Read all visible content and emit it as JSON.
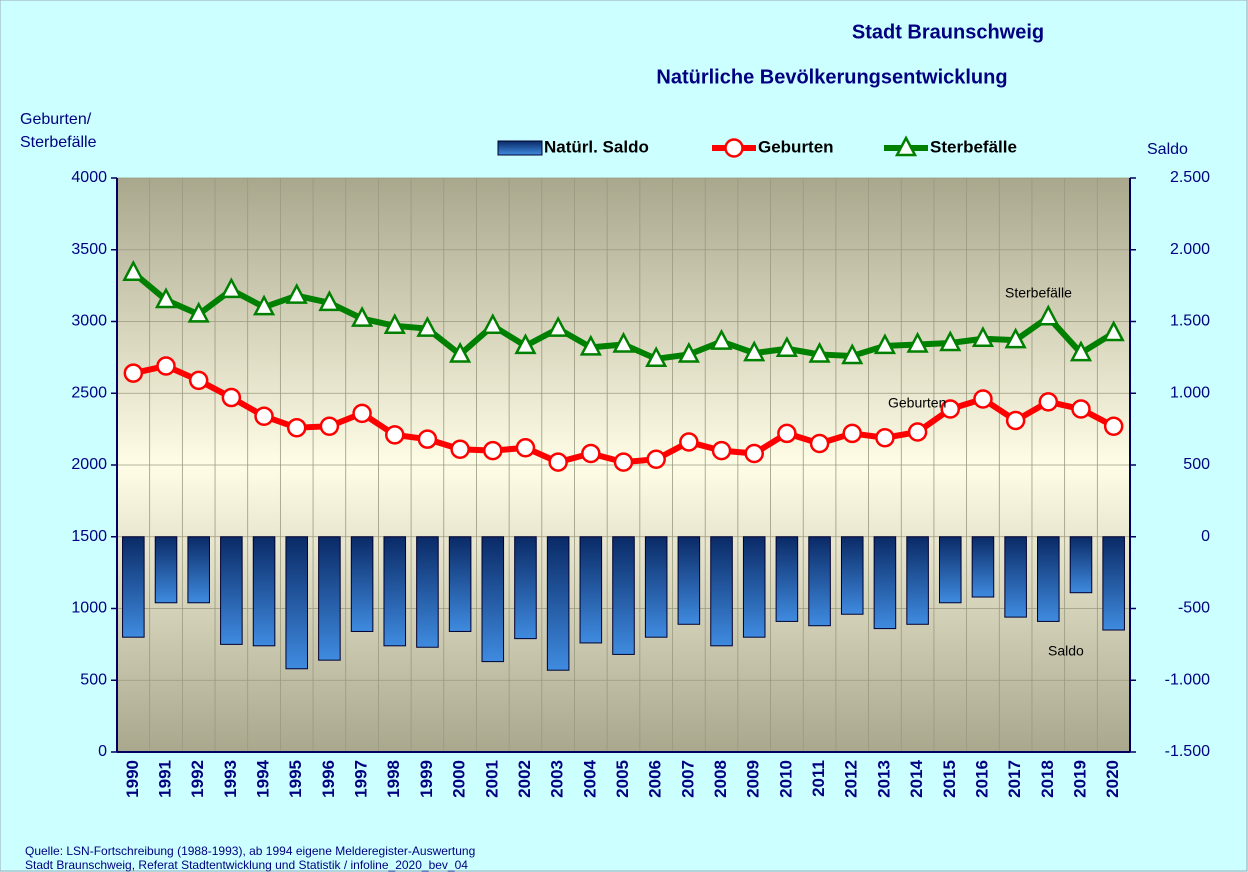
{
  "chart_data": {
    "type": "combo",
    "title": "Stadt Braunschweig",
    "subtitle": "Natürliche Bevölkerungsentwicklung",
    "y_label": [
      "Geburten/",
      "Sterbefälle"
    ],
    "y2_label": "Saldo",
    "categories": [
      "1990",
      "1991",
      "1992",
      "1993",
      "1994",
      "1995",
      "1996",
      "1997",
      "1998",
      "1999",
      "2000",
      "2001",
      "2002",
      "2003",
      "2004",
      "2005",
      "2006",
      "2007",
      "2008",
      "2009",
      "2010",
      "2011",
      "2012",
      "2013",
      "2014",
      "2015",
      "2016",
      "2017",
      "2018",
      "2019",
      "2020"
    ],
    "series": [
      {
        "name": "Natürl. Saldo",
        "type": "bar",
        "axis": "y2",
        "color": "#1a5cb0",
        "values": [
          -700,
          -460,
          -460,
          -750,
          -760,
          -920,
          -860,
          -660,
          -760,
          -770,
          -660,
          -870,
          -710,
          -930,
          -740,
          -820,
          -700,
          -610,
          -760,
          -700,
          -590,
          -620,
          -540,
          -640,
          -610,
          -460,
          -420,
          -560,
          -590,
          -390,
          -650
        ]
      },
      {
        "name": "Geburten",
        "type": "line",
        "color": "#ff0000",
        "values": [
          2640,
          2690,
          2590,
          2470,
          2340,
          2260,
          2270,
          2360,
          2210,
          2180,
          2110,
          2100,
          2120,
          2020,
          2080,
          2020,
          2040,
          2160,
          2100,
          2080,
          2220,
          2150,
          2220,
          2190,
          2230,
          2390,
          2460,
          2310,
          2440,
          2390,
          2270
        ]
      },
      {
        "name": "Sterbefälle",
        "type": "line",
        "color": "#008000",
        "values": [
          3340,
          3150,
          3050,
          3220,
          3100,
          3180,
          3130,
          3020,
          2970,
          2950,
          2770,
          2970,
          2830,
          2950,
          2820,
          2840,
          2740,
          2770,
          2860,
          2780,
          2810,
          2770,
          2760,
          2830,
          2840,
          2850,
          2880,
          2870,
          3030,
          2780,
          2920
        ]
      }
    ],
    "ylim": [
      0,
      4000
    ],
    "yticks": [
      0,
      500,
      1000,
      1500,
      2000,
      2500,
      3000,
      3500,
      4000
    ],
    "y2lim": [
      -1500,
      2500
    ],
    "y2ticks": [
      {
        "value": -1500,
        "label": "-1.500"
      },
      {
        "value": -1000,
        "label": "-1.000"
      },
      -500,
      0,
      500,
      {
        "value": 1000,
        "label": "1.000"
      },
      {
        "value": 1500,
        "label": "1.500"
      },
      {
        "value": 2000,
        "label": "2.000"
      },
      {
        "value": 2500,
        "label": "2.500"
      }
    ],
    "grid": true,
    "annotations": [
      "Sterbefälle",
      "Geburten",
      "Saldo"
    ],
    "footnotes": [
      "Quelle: LSN-Fortschreibung (1988-1993), ab 1994 eigene Melderegister-Auswertung",
      "Stadt Braunschweig, Referat Stadtentwicklung und Statistik / infoline_2020_bev_04"
    ]
  }
}
